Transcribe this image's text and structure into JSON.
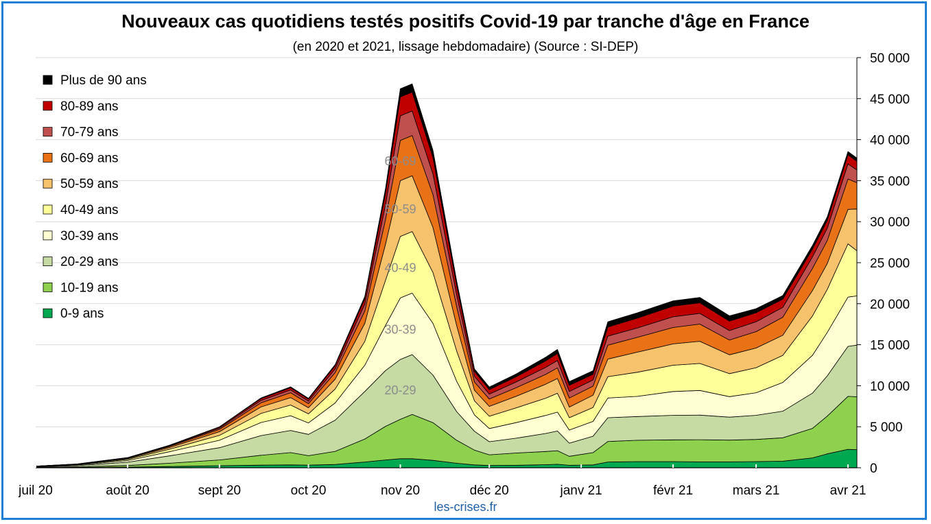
{
  "title": "Nouveaux cas quotidiens testés positifs Covid-19 par tranche d'âge en France",
  "subtitle": "(en 2020 et 2021, lissage hebdomadaire) (Source : SI-DEP)",
  "source": "les-crises.fr",
  "chart_data": {
    "type": "area",
    "stacked": true,
    "x_axis": {
      "labels": [
        "juil 20",
        "août 20",
        "sept 20",
        "oct 20",
        "nov 20",
        "déc 20",
        "janv 21",
        "févr 21",
        "mars 21",
        "avr 21"
      ],
      "range": [
        "2020-07-01",
        "2021-04-04"
      ]
    },
    "y_axis": {
      "position": "right",
      "range": [
        0,
        50000
      ],
      "ticks": [
        0,
        5000,
        10000,
        15000,
        20000,
        25000,
        30000,
        35000,
        40000,
        45000,
        50000
      ],
      "tick_labels": [
        "0",
        "5 000",
        "10 000",
        "15 000",
        "20 000",
        "25 000",
        "30 000",
        "35 000",
        "40 000",
        "45 000",
        "50 000"
      ]
    },
    "grid": "horizontal",
    "legend_position": "top-left",
    "x": [
      "2020-07-01",
      "2020-07-15",
      "2020-08-01",
      "2020-08-15",
      "2020-09-01",
      "2020-09-15",
      "2020-09-25",
      "2020-10-01",
      "2020-10-10",
      "2020-10-20",
      "2020-10-27",
      "2020-11-01",
      "2020-11-05",
      "2020-11-12",
      "2020-11-20",
      "2020-11-26",
      "2020-12-01",
      "2020-12-10",
      "2020-12-20",
      "2020-12-24",
      "2020-12-28",
      "2021-01-05",
      "2021-01-10",
      "2021-01-20",
      "2021-02-01",
      "2021-02-10",
      "2021-02-20",
      "2021-03-01",
      "2021-03-10",
      "2021-03-20",
      "2021-03-25",
      "2021-04-01",
      "2021-04-04"
    ],
    "series": [
      {
        "name": "0-9 ans",
        "color": "#00a850",
        "values": [
          20,
          30,
          80,
          150,
          250,
          320,
          350,
          320,
          400,
          700,
          950,
          1100,
          1100,
          900,
          550,
          350,
          280,
          300,
          380,
          430,
          300,
          350,
          700,
          750,
          750,
          720,
          720,
          750,
          800,
          1200,
          1700,
          2250,
          2200
        ]
      },
      {
        "name": "10-19 ans",
        "color": "#8ed14e",
        "values": [
          40,
          80,
          200,
          400,
          700,
          1200,
          1500,
          1150,
          1600,
          2800,
          4100,
          4800,
          5400,
          4600,
          2800,
          1800,
          1300,
          1500,
          1600,
          1650,
          1100,
          1500,
          2500,
          2600,
          2650,
          2700,
          2650,
          2700,
          2850,
          3600,
          4600,
          6450,
          6450
        ]
      },
      {
        "name": "20-29 ans",
        "color": "#c6dba4",
        "values": [
          60,
          150,
          400,
          900,
          1500,
          2400,
          2700,
          2600,
          3800,
          5800,
          6800,
          7300,
          7300,
          5800,
          3500,
          2300,
          1600,
          1800,
          2200,
          2400,
          1600,
          2000,
          2900,
          2900,
          3000,
          3000,
          2800,
          2950,
          3250,
          4300,
          4900,
          6100,
          6300
        ]
      },
      {
        "name": "30-39 ans",
        "color": "#ffffd2",
        "values": [
          30,
          80,
          200,
          500,
          900,
          1600,
          1800,
          1400,
          2100,
          3200,
          5500,
          7500,
          7500,
          6300,
          3700,
          2000,
          1600,
          1900,
          2200,
          2300,
          1600,
          1800,
          2400,
          2450,
          2900,
          3000,
          2500,
          2750,
          3500,
          4600,
          5300,
          6000,
          6000
        ]
      },
      {
        "name": "40-49 ans",
        "color": "#ffff9a",
        "values": [
          20,
          50,
          140,
          300,
          600,
          1100,
          1300,
          1100,
          1700,
          2900,
          5500,
          7500,
          7500,
          6200,
          3700,
          1700,
          1500,
          1800,
          2100,
          2300,
          1500,
          1700,
          2600,
          2950,
          3200,
          3300,
          2800,
          3050,
          3300,
          4800,
          5250,
          6500,
          5500
        ]
      },
      {
        "name": "50-59 ans",
        "color": "#f6c26c",
        "values": [
          15,
          35,
          100,
          200,
          450,
          800,
          900,
          750,
          1200,
          2200,
          4400,
          6800,
          6800,
          5500,
          3100,
          1300,
          1200,
          1400,
          1700,
          1800,
          1300,
          1500,
          2150,
          2450,
          2600,
          2700,
          2300,
          2400,
          2450,
          3100,
          3150,
          4200,
          5100
        ]
      },
      {
        "name": "60-69 ans",
        "color": "#e97217",
        "values": [
          8,
          20,
          60,
          130,
          280,
          500,
          600,
          500,
          800,
          1500,
          3000,
          4900,
          4900,
          4000,
          2300,
          1000,
          900,
          1050,
          1200,
          1300,
          1100,
          1100,
          1700,
          1800,
          2000,
          2100,
          1800,
          2000,
          2200,
          2700,
          2800,
          3700,
          3200
        ]
      },
      {
        "name": "70-79 ans",
        "color": "#c0504d",
        "values": [
          5,
          10,
          30,
          70,
          150,
          280,
          340,
          300,
          450,
          850,
          1800,
          3000,
          3000,
          2500,
          1450,
          700,
          600,
          700,
          850,
          900,
          800,
          750,
          1100,
          1150,
          1300,
          1300,
          1150,
          1200,
          1200,
          1400,
          1500,
          1850,
          1550
        ]
      },
      {
        "name": "80-89 ans",
        "color": "#c00000",
        "values": [
          3,
          8,
          25,
          60,
          120,
          220,
          270,
          250,
          380,
          650,
          1400,
          2300,
          2300,
          2000,
          1150,
          600,
          550,
          630,
          800,
          850,
          750,
          700,
          1100,
          1200,
          1300,
          1300,
          1150,
          1100,
          1000,
          950,
          950,
          1100,
          1050
        ]
      },
      {
        "name": "Plus de 90 ans",
        "color": "#000000",
        "values": [
          2,
          4,
          10,
          25,
          50,
          90,
          110,
          100,
          150,
          280,
          600,
          1000,
          1000,
          900,
          550,
          300,
          300,
          350,
          450,
          500,
          450,
          430,
          650,
          650,
          650,
          650,
          650,
          500,
          450,
          450,
          450,
          400,
          400
        ]
      }
    ],
    "inline_labels": [
      "20-29",
      "30-39",
      "40-49",
      "50-59",
      "60-69"
    ]
  }
}
